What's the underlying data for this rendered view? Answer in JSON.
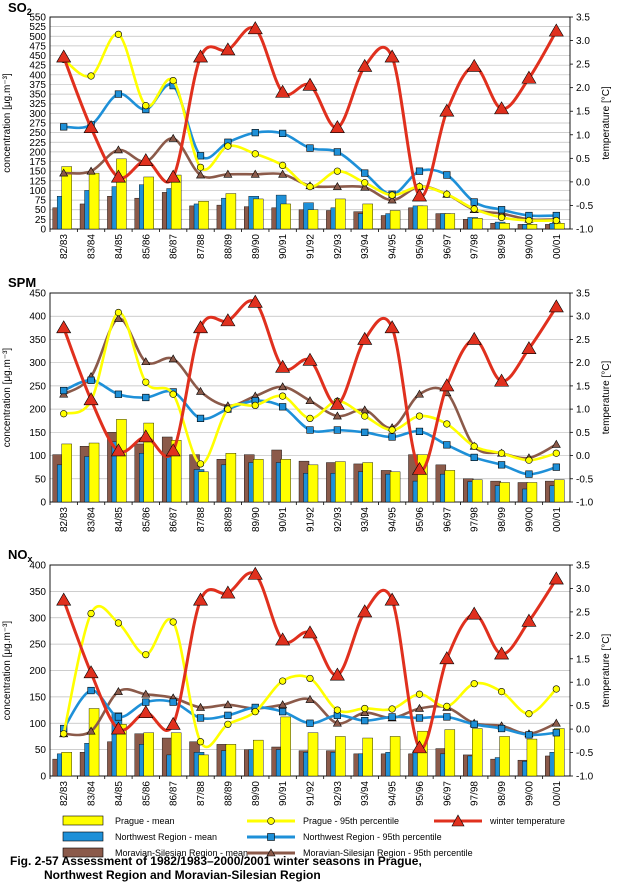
{
  "seasons": [
    "82/83",
    "83/84",
    "84/85",
    "85/86",
    "86/87",
    "87/88",
    "88/89",
    "89/90",
    "90/91",
    "91/92",
    "92/93",
    "93/94",
    "94/95",
    "95/96",
    "96/97",
    "97/98",
    "98/99",
    "99/00",
    "00/01"
  ],
  "left_axis_label": "concentration  [μg.m⁻³]",
  "right_axis_label": "temperature [°C]",
  "legend": {
    "prague_mean": "Prague - mean",
    "northwest_mean": "Northwest Region - mean",
    "moravian_mean": "Moravian-Silesian Region - mean",
    "prague_p95": "Prague - 95th percentile",
    "northwest_p95": "Northwest Region - 95th percentile",
    "moravian_p95": "Moravian-Silesian Region - 95th percentile",
    "winter_temp": "winter temperature"
  },
  "caption": {
    "line1": "Fig. 2-57  Assessment of 1982/1983–2000/2001 winter seasons in Prague,",
    "line2": "Northwest Region and Moravian-Silesian Region"
  },
  "colors": {
    "prague": "#ffff00",
    "northwest": "#1e90d8",
    "moravian": "#8b5a4a",
    "temperature": "#e0301e"
  },
  "chart_data": [
    {
      "type": "bar",
      "title": "SO2",
      "title_main": "SO",
      "title_sub": "2",
      "categories": [
        "82/83",
        "83/84",
        "84/85",
        "85/86",
        "86/87",
        "87/88",
        "88/89",
        "89/90",
        "90/91",
        "91/92",
        "92/93",
        "93/94",
        "94/95",
        "95/96",
        "96/97",
        "97/98",
        "98/99",
        "99/00",
        "00/01"
      ],
      "ylim": [
        0,
        550
      ],
      "yticks": [
        0,
        25,
        50,
        75,
        100,
        125,
        150,
        175,
        200,
        225,
        250,
        275,
        300,
        325,
        350,
        375,
        400,
        425,
        450,
        475,
        500,
        525,
        550
      ],
      "y2lim": [
        -1,
        3.5
      ],
      "y2ticks": [
        -1,
        -0.5,
        0,
        0.5,
        1,
        1.5,
        2,
        2.5,
        3,
        3.5
      ],
      "series": [
        {
          "name": "Moravian-Silesian Region - mean",
          "kind": "bar",
          "values": [
            55,
            65,
            85,
            80,
            95,
            60,
            62,
            58,
            55,
            50,
            48,
            45,
            35,
            55,
            40,
            25,
            15,
            12,
            12
          ]
        },
        {
          "name": "Northwest Region - mean",
          "kind": "bar",
          "values": [
            85,
            100,
            110,
            115,
            105,
            65,
            80,
            85,
            88,
            68,
            55,
            40,
            40,
            60,
            40,
            30,
            18,
            12,
            15
          ]
        },
        {
          "name": "Prague - mean",
          "kind": "bar",
          "values": [
            162,
            145,
            182,
            135,
            140,
            72,
            92,
            78,
            65,
            50,
            78,
            65,
            48,
            60,
            40,
            28,
            15,
            12,
            15
          ]
        },
        {
          "name": "Prague - 95th percentile",
          "kind": "line",
          "values": [
            440,
            397,
            505,
            320,
            385,
            160,
            215,
            195,
            165,
            110,
            150,
            120,
            88,
            110,
            90,
            52,
            30,
            22,
            22
          ]
        },
        {
          "name": "Northwest Region - 95th percentile",
          "kind": "line",
          "values": [
            265,
            270,
            350,
            310,
            372,
            190,
            225,
            250,
            248,
            210,
            200,
            145,
            90,
            150,
            140,
            70,
            50,
            35,
            35
          ]
        },
        {
          "name": "Moravian-Silesian Region - 95th percentile",
          "kind": "line",
          "values": [
            145,
            150,
            205,
            175,
            235,
            140,
            142,
            142,
            142,
            112,
            110,
            108,
            75,
            110,
            90,
            50,
            40,
            25,
            25
          ]
        },
        {
          "name": "winter temperature",
          "kind": "temp",
          "values": [
            2.65,
            1.15,
            0.1,
            0.45,
            0.1,
            2.65,
            2.8,
            3.25,
            1.9,
            2.05,
            1.15,
            2.45,
            2.65,
            -0.3,
            1.5,
            2.45,
            1.55,
            2.2,
            3.2
          ]
        }
      ]
    },
    {
      "type": "bar",
      "title": "SPM",
      "title_main": "SPM",
      "title_sub": "",
      "categories": [
        "82/83",
        "83/84",
        "84/85",
        "85/86",
        "86/87",
        "87/88",
        "88/89",
        "89/90",
        "90/91",
        "91/92",
        "92/93",
        "93/94",
        "94/95",
        "95/96",
        "96/97",
        "97/98",
        "98/99",
        "99/00",
        "00/01"
      ],
      "ylim": [
        0,
        450
      ],
      "yticks": [
        0,
        50,
        100,
        150,
        200,
        250,
        300,
        350,
        400,
        450
      ],
      "y2lim": [
        -1,
        3.5
      ],
      "y2ticks": [
        -1,
        -0.5,
        0,
        0.5,
        1,
        1.5,
        2,
        2.5,
        3,
        3.5
      ],
      "series": [
        {
          "name": "Moravian-Silesian Region - mean",
          "kind": "bar",
          "values": [
            102,
            120,
            150,
            125,
            140,
            102,
            92,
            102,
            112,
            88,
            85,
            82,
            68,
            102,
            80,
            50,
            45,
            42,
            45
          ]
        },
        {
          "name": "Northwest Region - mean",
          "kind": "bar",
          "values": [
            80,
            98,
            130,
            105,
            97,
            70,
            80,
            85,
            85,
            62,
            62,
            65,
            60,
            45,
            60,
            44,
            35,
            28,
            35
          ]
        },
        {
          "name": "Prague - mean",
          "kind": "bar",
          "values": [
            125,
            127,
            178,
            170,
            133,
            65,
            105,
            92,
            92,
            80,
            87,
            85,
            65,
            102,
            68,
            48,
            42,
            42,
            48
          ]
        },
        {
          "name": "Prague - 95th percentile",
          "kind": "line",
          "values": [
            190,
            218,
            408,
            258,
            232,
            82,
            200,
            208,
            228,
            180,
            217,
            185,
            155,
            185,
            168,
            120,
            105,
            90,
            105
          ]
        },
        {
          "name": "Northwest Region - 95th percentile",
          "kind": "line",
          "values": [
            240,
            262,
            232,
            225,
            237,
            180,
            200,
            218,
            205,
            155,
            155,
            150,
            140,
            152,
            123,
            96,
            80,
            60,
            75
          ]
        },
        {
          "name": "Moravian-Silesian Region - 95th percentile",
          "kind": "line",
          "values": [
            232,
            270,
            395,
            302,
            308,
            238,
            207,
            228,
            248,
            218,
            185,
            198,
            160,
            232,
            235,
            120,
            105,
            95,
            124
          ]
        },
        {
          "name": "winter temperature",
          "kind": "temp",
          "values": [
            2.75,
            1.2,
            0.1,
            0.4,
            0.1,
            2.75,
            2.9,
            3.3,
            1.9,
            2.05,
            1.1,
            2.5,
            2.75,
            -0.3,
            1.5,
            2.5,
            1.6,
            2.3,
            3.2
          ]
        }
      ]
    },
    {
      "type": "bar",
      "title": "NOx",
      "title_main": "NO",
      "title_sub": "x",
      "categories": [
        "82/83",
        "83/84",
        "84/85",
        "85/86",
        "86/87",
        "87/88",
        "88/89",
        "89/90",
        "90/91",
        "91/92",
        "92/93",
        "93/94",
        "94/95",
        "95/96",
        "96/97",
        "97/98",
        "98/99",
        "99/00",
        "00/01"
      ],
      "ylim": [
        0,
        400
      ],
      "yticks": [
        0,
        50,
        100,
        150,
        200,
        250,
        300,
        350,
        400
      ],
      "y2lim": [
        -1,
        3.5
      ],
      "y2ticks": [
        -1,
        -0.5,
        0,
        0.5,
        1,
        1.5,
        2,
        2.5,
        3,
        3.5
      ],
      "series": [
        {
          "name": "Moravian-Silesian Region - mean",
          "kind": "bar",
          "values": [
            32,
            45,
            65,
            80,
            72,
            65,
            60,
            50,
            55,
            48,
            48,
            42,
            42,
            42,
            52,
            40,
            32,
            30,
            38
          ]
        },
        {
          "name": "Northwest Region - mean",
          "kind": "bar",
          "values": [
            42,
            62,
            120,
            60,
            40,
            45,
            48,
            50,
            50,
            45,
            45,
            42,
            45,
            48,
            42,
            38,
            35,
            28,
            45
          ]
        },
        {
          "name": "Prague - mean",
          "kind": "bar",
          "values": [
            45,
            128,
            98,
            82,
            82,
            40,
            60,
            68,
            112,
            82,
            75,
            72,
            75,
            85,
            88,
            90,
            75,
            70,
            90
          ]
        },
        {
          "name": "Prague - 95th percentile",
          "kind": "line",
          "values": [
            80,
            308,
            290,
            230,
            292,
            65,
            98,
            122,
            180,
            185,
            125,
            128,
            127,
            155,
            132,
            175,
            160,
            118,
            165
          ]
        },
        {
          "name": "Northwest Region - 95th percentile",
          "kind": "line",
          "values": [
            90,
            162,
            112,
            140,
            140,
            110,
            115,
            130,
            122,
            100,
            115,
            105,
            112,
            110,
            112,
            98,
            90,
            78,
            82
          ]
        },
        {
          "name": "Moravian-Silesian Region - 95th percentile",
          "kind": "line",
          "values": [
            80,
            85,
            160,
            155,
            148,
            130,
            135,
            128,
            135,
            145,
            100,
            120,
            110,
            128,
            130,
            100,
            95,
            80,
            100
          ]
        },
        {
          "name": "winter temperature",
          "kind": "temp",
          "values": [
            2.75,
            1.2,
            0.0,
            0.35,
            0.1,
            2.75,
            2.9,
            3.3,
            1.9,
            2.05,
            1.15,
            2.5,
            2.75,
            -0.4,
            1.5,
            2.45,
            1.6,
            2.3,
            3.2
          ]
        }
      ]
    }
  ]
}
